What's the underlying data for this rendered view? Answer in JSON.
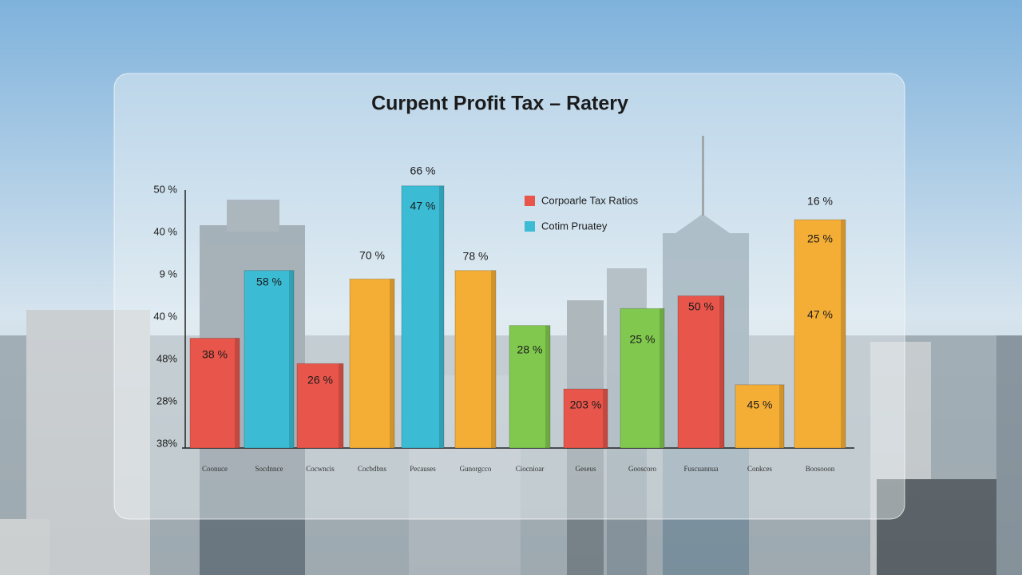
{
  "chart_data": {
    "type": "bar",
    "title": "Curpent Profit Tax – Ratery",
    "categories": [
      "Coonuce",
      "Socdnnce",
      "Cocwncis",
      "Cocbdbns",
      "Pecauses",
      "Gunorgcco",
      "Ciocnioar",
      "Geseus",
      "Gooscoro",
      "Fuscuannua",
      "Conkces",
      "Boosooon"
    ],
    "values": [
      25,
      41,
      19,
      39,
      61,
      41,
      28,
      13,
      32,
      35,
      14,
      53
    ],
    "colors": [
      "#e8554a",
      "#3bbcd4",
      "#e8554a",
      "#f5ae35",
      "#3bbcd4",
      "#f5ae35",
      "#80c94e",
      "#e8554a",
      "#80c94e",
      "#e8554a",
      "#f5ae35",
      "#f5ae35"
    ],
    "bar_labels": [
      [
        "38 %"
      ],
      [
        "58 %"
      ],
      [
        "26 %"
      ],
      [
        "70 %"
      ],
      [
        "66 %",
        "47 %"
      ],
      [
        "78 %"
      ],
      [
        "28 %"
      ],
      [
        "203 %"
      ],
      [
        "25 %"
      ],
      [
        "50 %"
      ],
      [
        "45 %"
      ],
      [
        "16 %",
        "25 %",
        "47 %"
      ]
    ],
    "y_axis_labels": [
      "50 %",
      "40 %",
      "9 %",
      "40 %",
      "48%",
      "28%",
      "38%"
    ],
    "ylim": [
      0,
      60
    ],
    "legend": [
      {
        "name": "Corpoarle Tax Ratios",
        "color": "#e8554a"
      },
      {
        "name": "Cotim Pruatey",
        "color": "#3bbcd4"
      }
    ]
  }
}
